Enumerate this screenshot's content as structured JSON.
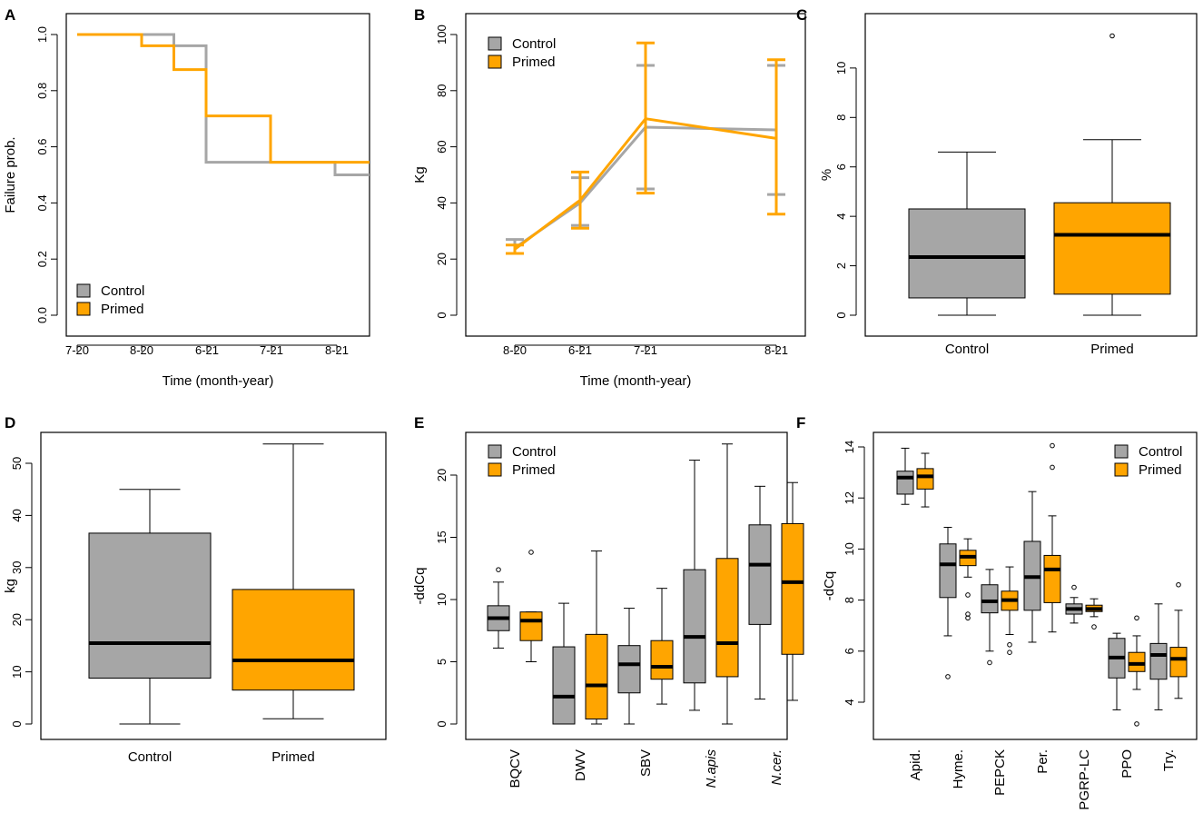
{
  "colors": {
    "control": "#a6a6a6",
    "primed": "#ffa500",
    "median": "#000000"
  },
  "legend": {
    "control": "Control",
    "primed": "Primed"
  },
  "chart_data": [
    {
      "panel": "A",
      "type": "step",
      "xlabel": "Time (month-year)",
      "ylabel": "Failure prob.",
      "xticks": [
        "7-20",
        "8-20",
        "6-21",
        "7-21",
        "8-21"
      ],
      "ylim": [
        0,
        1
      ],
      "yticks": [
        "0.0",
        "0.2",
        "0.4",
        "0.6",
        "0.8",
        "1.0"
      ],
      "legend_position": "bottom-left",
      "series": [
        {
          "name": "Control",
          "steps": [
            [
              0,
              1.0
            ],
            [
              1.5,
              0.96
            ],
            [
              2,
              0.545
            ],
            [
              4,
              0.5
            ],
            [
              4.5,
              0.5
            ]
          ]
        },
        {
          "name": "Primed",
          "steps": [
            [
              0,
              1.0
            ],
            [
              1,
              0.96
            ],
            [
              1.5,
              0.875
            ],
            [
              2,
              0.71
            ],
            [
              3,
              0.545
            ],
            [
              4.5,
              0.545
            ]
          ]
        }
      ]
    },
    {
      "panel": "B",
      "type": "line",
      "xlabel": "Time (month-year)",
      "ylabel": "Kg",
      "categories": [
        "8-20",
        "6-21",
        "7-21",
        "8-21"
      ],
      "ylim": [
        0,
        100
      ],
      "yticks": [
        "0",
        "20",
        "40",
        "60",
        "80",
        "100"
      ],
      "legend_position": "top-left",
      "series": [
        {
          "name": "Control",
          "values": [
            24,
            40,
            67,
            66
          ],
          "lower": [
            22,
            32,
            45,
            43
          ],
          "upper": [
            27,
            49,
            89,
            89
          ]
        },
        {
          "name": "Primed",
          "values": [
            23.5,
            41,
            70,
            63
          ],
          "lower": [
            22,
            31,
            43.5,
            36
          ],
          "upper": [
            25,
            51,
            97,
            91
          ]
        }
      ]
    },
    {
      "panel": "C",
      "type": "box",
      "ylabel": "%",
      "categories": [
        "Control",
        "Primed"
      ],
      "ylim": [
        0,
        11.3
      ],
      "yticks": [
        "0",
        "2",
        "4",
        "6",
        "8",
        "10"
      ],
      "boxes": [
        {
          "min": 0,
          "q1": 0.7,
          "median": 2.35,
          "q3": 4.3,
          "max": 6.6,
          "outliers": []
        },
        {
          "min": 0,
          "q1": 0.85,
          "median": 3.25,
          "q3": 4.55,
          "max": 7.1,
          "outliers": [
            11.3
          ]
        }
      ]
    },
    {
      "panel": "D",
      "type": "box",
      "ylabel": "kg",
      "categories": [
        "Control",
        "Primed"
      ],
      "ylim": [
        0,
        54
      ],
      "yticks": [
        "0",
        "10",
        "20",
        "30",
        "40",
        "50"
      ],
      "boxes": [
        {
          "min": 0,
          "q1": 8.8,
          "median": 15.5,
          "q3": 36.6,
          "max": 45,
          "outliers": []
        },
        {
          "min": 1,
          "q1": 6.5,
          "median": 12.2,
          "q3": 25.8,
          "max": 53.7,
          "outliers": []
        }
      ]
    },
    {
      "panel": "E",
      "type": "box",
      "ylabel": "-ddCq",
      "categories": [
        "BQCV",
        "DWV",
        "SBV",
        "N.apis",
        "N.cer."
      ],
      "italic_categories": [
        "N.apis",
        "N.cer."
      ],
      "ylim": [
        0,
        22.5
      ],
      "yticks": [
        "0",
        "5",
        "10",
        "15",
        "20"
      ],
      "legend_position": "top-left",
      "groups": [
        {
          "control": {
            "min": 6.1,
            "q1": 7.5,
            "median": 8.5,
            "q3": 9.5,
            "max": 11.4,
            "outliers": [
              12.4
            ]
          },
          "primed": {
            "min": 5.0,
            "q1": 6.7,
            "median": 8.3,
            "q3": 9.0,
            "max": 9.0,
            "outliers": [
              13.8
            ]
          }
        },
        {
          "control": {
            "min": 0,
            "q1": 0,
            "median": 2.2,
            "q3": 6.2,
            "max": 9.7,
            "outliers": []
          },
          "primed": {
            "min": 0,
            "q1": 0.4,
            "median": 3.1,
            "q3": 7.2,
            "max": 13.9,
            "outliers": []
          }
        },
        {
          "control": {
            "min": 0,
            "q1": 2.5,
            "median": 4.8,
            "q3": 6.3,
            "max": 9.3,
            "outliers": []
          },
          "primed": {
            "min": 1.6,
            "q1": 3.6,
            "median": 4.6,
            "q3": 6.7,
            "max": 10.9,
            "outliers": []
          }
        },
        {
          "control": {
            "min": 1.1,
            "q1": 3.3,
            "median": 7.0,
            "q3": 12.4,
            "max": 21.2,
            "outliers": []
          },
          "primed": {
            "min": 0,
            "q1": 3.8,
            "median": 6.5,
            "q3": 13.3,
            "max": 22.5,
            "outliers": []
          }
        },
        {
          "control": {
            "min": 2.0,
            "q1": 8.0,
            "median": 12.8,
            "q3": 16.0,
            "max": 19.1,
            "outliers": []
          },
          "primed": {
            "min": 1.9,
            "q1": 5.6,
            "median": 11.4,
            "q3": 16.1,
            "max": 19.4,
            "outliers": []
          }
        }
      ]
    },
    {
      "panel": "F",
      "type": "box",
      "ylabel": "-dCq",
      "categories": [
        "Apid.",
        "Hyme.",
        "PEPCK",
        "Per.",
        "PGRP-LC",
        "PPO",
        "Try."
      ],
      "ylim": [
        3.1,
        14.1
      ],
      "yticks": [
        "4",
        "6",
        "8",
        "10",
        "12",
        "14"
      ],
      "legend_position": "top-right",
      "groups": [
        {
          "control": {
            "min": 11.75,
            "q1": 12.15,
            "median": 12.8,
            "q3": 13.05,
            "max": 13.95,
            "outliers": []
          },
          "primed": {
            "min": 11.65,
            "q1": 12.35,
            "median": 12.85,
            "q3": 13.15,
            "max": 13.75,
            "outliers": []
          }
        },
        {
          "control": {
            "min": 6.6,
            "q1": 8.1,
            "median": 9.4,
            "q3": 10.2,
            "max": 10.85,
            "outliers": [
              5.0
            ]
          },
          "primed": {
            "min": 8.9,
            "q1": 9.35,
            "median": 9.7,
            "q3": 9.95,
            "max": 10.4,
            "outliers": [
              8.2,
              7.45,
              7.3
            ]
          }
        },
        {
          "control": {
            "min": 6.0,
            "q1": 7.5,
            "median": 7.95,
            "q3": 8.6,
            "max": 9.2,
            "outliers": [
              5.55
            ]
          },
          "primed": {
            "min": 6.65,
            "q1": 7.6,
            "median": 8.0,
            "q3": 8.35,
            "max": 9.3,
            "outliers": [
              6.25,
              5.95
            ]
          }
        },
        {
          "control": {
            "min": 6.35,
            "q1": 7.6,
            "median": 8.9,
            "q3": 10.3,
            "max": 12.25,
            "outliers": []
          },
          "primed": {
            "min": 6.75,
            "q1": 7.9,
            "median": 9.2,
            "q3": 9.75,
            "max": 11.3,
            "outliers": [
              14.05,
              13.2
            ]
          }
        },
        {
          "control": {
            "min": 7.1,
            "q1": 7.45,
            "median": 7.65,
            "q3": 7.85,
            "max": 8.1,
            "outliers": [
              8.5
            ]
          },
          "primed": {
            "min": 7.35,
            "q1": 7.55,
            "median": 7.65,
            "q3": 7.8,
            "max": 8.05,
            "outliers": [
              6.95
            ]
          }
        },
        {
          "control": {
            "min": 3.7,
            "q1": 4.95,
            "median": 5.75,
            "q3": 6.5,
            "max": 6.7,
            "outliers": []
          },
          "primed": {
            "min": 4.5,
            "q1": 5.2,
            "median": 5.5,
            "q3": 5.95,
            "max": 6.6,
            "outliers": [
              7.3,
              3.15
            ]
          }
        },
        {
          "control": {
            "min": 3.7,
            "q1": 4.9,
            "median": 5.85,
            "q3": 6.3,
            "max": 7.85,
            "outliers": []
          },
          "primed": {
            "min": 4.15,
            "q1": 5.0,
            "median": 5.7,
            "q3": 6.15,
            "max": 7.6,
            "outliers": [
              8.6
            ]
          }
        }
      ]
    }
  ]
}
